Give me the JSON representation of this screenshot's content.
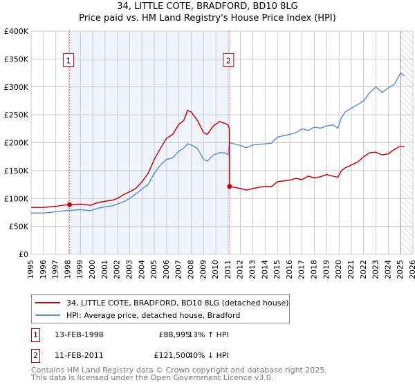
{
  "title_line1": "34, LITTLE COTE, BRADFORD, BD10 8LG",
  "title_line2": "Price paid vs. HM Land Registry's House Price Index (HPI)",
  "chart_data": {
    "type": "line",
    "title": "34, LITTLE COTE, BRADFORD, BD10 8LG — Price paid vs. HM Land Registry's House Price Index (HPI)",
    "xlim": [
      1995,
      2026
    ],
    "ylim": [
      0,
      400000
    ],
    "x_ticks": [
      "1995",
      "1996",
      "1997",
      "1998",
      "1999",
      "2000",
      "2001",
      "2002",
      "2003",
      "2004",
      "2005",
      "2006",
      "2007",
      "2008",
      "2009",
      "2010",
      "2011",
      "2012",
      "2013",
      "2014",
      "2015",
      "2016",
      "2017",
      "2018",
      "2019",
      "2020",
      "2021",
      "2022",
      "2023",
      "2024",
      "2025",
      "2026"
    ],
    "y_ticks": [
      {
        "v": 0,
        "label": "£0"
      },
      {
        "v": 50000,
        "label": "£50K"
      },
      {
        "v": 100000,
        "label": "£100K"
      },
      {
        "v": 150000,
        "label": "£150K"
      },
      {
        "v": 200000,
        "label": "£200K"
      },
      {
        "v": 250000,
        "label": "£250K"
      },
      {
        "v": 300000,
        "label": "£300K"
      },
      {
        "v": 350000,
        "label": "£350K"
      },
      {
        "v": 400000,
        "label": "£400K"
      }
    ],
    "grid": true,
    "series": [
      {
        "name": "34, LITTLE COTE, BRADFORD, BD10 8LG (detached house)",
        "color": "#cc0000",
        "x": [
          1995,
          1996,
          1997,
          1997.6,
          1998.12,
          1999,
          1999.8,
          2000.5,
          2001,
          2001.6,
          2002,
          2002.6,
          2003,
          2003.5,
          2004,
          2004.5,
          2005,
          2005.5,
          2006,
          2006.5,
          2007,
          2007.4,
          2007.7,
          2008,
          2008.5,
          2009,
          2009.3,
          2009.8,
          2010.3,
          2010.7,
          2011.0,
          2011.1,
          2011.11,
          2012,
          2012.5,
          2013,
          2014,
          2014.5,
          2015,
          2016,
          2016.5,
          2017,
          2017.5,
          2018,
          2018.5,
          2019,
          2019.5,
          2019.9,
          2020.2,
          2020.5,
          2021,
          2021.5,
          2022,
          2022.5,
          2023,
          2023.5,
          2024,
          2024.5,
          2025,
          2025.3
        ],
        "y": [
          84000,
          84000,
          86000,
          88000,
          88995,
          90000,
          88000,
          93000,
          95000,
          97000,
          100000,
          108000,
          112000,
          118000,
          130000,
          145000,
          170000,
          190000,
          208000,
          215000,
          233000,
          240000,
          258000,
          255000,
          240000,
          218000,
          215000,
          230000,
          238000,
          235000,
          232000,
          225000,
          121500,
          118000,
          115000,
          118000,
          122000,
          121000,
          130000,
          133000,
          136000,
          134000,
          140000,
          137000,
          139000,
          143000,
          140000,
          138000,
          150000,
          155000,
          160000,
          165000,
          175000,
          182000,
          183000,
          178000,
          180000,
          188000,
          194000,
          193000
        ]
      },
      {
        "name": "HPI: Average price, detached house, Bradford",
        "color": "#5b8fd4",
        "x": [
          1995,
          1996,
          1997,
          1997.6,
          1998.12,
          1999,
          1999.8,
          2000.5,
          2001,
          2001.6,
          2002,
          2002.6,
          2003,
          2003.5,
          2004,
          2004.5,
          2005,
          2005.5,
          2006,
          2006.5,
          2007,
          2007.4,
          2007.7,
          2008,
          2008.5,
          2009,
          2009.3,
          2009.8,
          2010.3,
          2010.7,
          2011.0,
          2011.11,
          2012,
          2012.5,
          2013,
          2014,
          2014.5,
          2015,
          2016,
          2016.5,
          2017,
          2017.5,
          2018,
          2018.5,
          2019,
          2019.5,
          2019.9,
          2020.2,
          2020.5,
          2021,
          2021.5,
          2022,
          2022.5,
          2023,
          2023.5,
          2024,
          2024.5,
          2025,
          2025.3
        ],
        "y": [
          74000,
          74000,
          76000,
          78000,
          78500,
          80000,
          78000,
          83000,
          85000,
          87000,
          90000,
          95000,
          100000,
          108000,
          117000,
          125000,
          145000,
          160000,
          170000,
          173000,
          185000,
          190000,
          198000,
          196000,
          190000,
          170000,
          167000,
          178000,
          182000,
          182000,
          178000,
          200000,
          195000,
          191000,
          196000,
          198000,
          199000,
          210000,
          215000,
          218000,
          225000,
          222000,
          228000,
          226000,
          230000,
          232000,
          226000,
          245000,
          255000,
          262000,
          268000,
          275000,
          290000,
          300000,
          290000,
          298000,
          305000,
          325000,
          320000
        ]
      }
    ],
    "annotations": [
      {
        "label": "1",
        "x": 1998.12
      },
      {
        "label": "2",
        "x": 2011.11
      }
    ],
    "shaded_range": [
      1998.12,
      2011.11
    ],
    "hatched_from": 2025.0,
    "legend": "below"
  },
  "legend": {
    "items": [
      {
        "label": "34, LITTLE COTE, BRADFORD, BD10 8LG (detached house)"
      },
      {
        "label": "HPI: Average price, detached house, Bradford"
      }
    ]
  },
  "sales": [
    {
      "num": "1",
      "date": "13-FEB-1998",
      "price": "£88,995",
      "hpi": "13% ↑ HPI"
    },
    {
      "num": "2",
      "date": "11-FEB-2011",
      "price": "£121,500",
      "hpi": "40% ↓ HPI"
    }
  ],
  "footer": {
    "line1": "Contains HM Land Registry data © Crown copyright and database right 2025.",
    "line2": "This data is licensed under the Open Government Licence v3.0."
  }
}
